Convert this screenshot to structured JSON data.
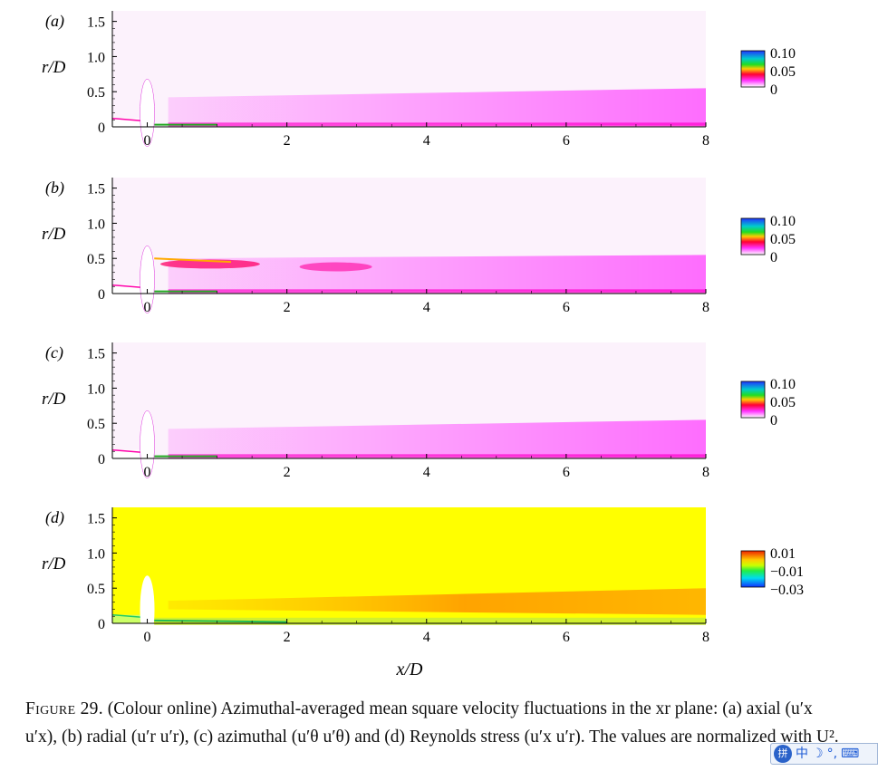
{
  "panels": [
    {
      "label": "(a)",
      "colorbar": {
        "type": "rainbow",
        "ticks": [
          "0.10",
          "0.05",
          "0"
        ]
      }
    },
    {
      "label": "(b)",
      "colorbar": {
        "type": "rainbow",
        "ticks": [
          "0.10",
          "0.05",
          "0"
        ]
      }
    },
    {
      "label": "(c)",
      "colorbar": {
        "type": "rainbow",
        "ticks": [
          "0.10",
          "0.05",
          "0"
        ]
      }
    },
    {
      "label": "(d)",
      "colorbar": {
        "type": "diverging",
        "ticks": [
          "0.01",
          "−0.01",
          "−0.03"
        ]
      }
    }
  ],
  "axes": {
    "ylabel": "r/D",
    "xlabel": "x/D",
    "yticks": [
      "1.5",
      "1.0",
      "0.5",
      "0"
    ],
    "xticks": [
      "0",
      "2",
      "4",
      "6",
      "8"
    ],
    "xlim": [
      -0.5,
      8
    ],
    "ylim": [
      0,
      1.65
    ]
  },
  "colors": {
    "background_low": "#fcf2fc",
    "stress_background": "#ffff00",
    "stress_band": "#ff9900"
  },
  "caption": {
    "prefix": "Figure 29.",
    "text": "(Colour online) Azimuthal-averaged mean square velocity fluctuations in the xr plane: (a) axial (u′x u′x), (b) radial (u′r u′r), (c) azimuthal (u′θ u′θ) and (d) Reynolds stress (u′x u′r). The values are normalized with U²."
  },
  "ime_toolbar": {
    "logo": "拼",
    "items": [
      "中",
      "☽",
      "°,",
      "⌨"
    ]
  }
}
